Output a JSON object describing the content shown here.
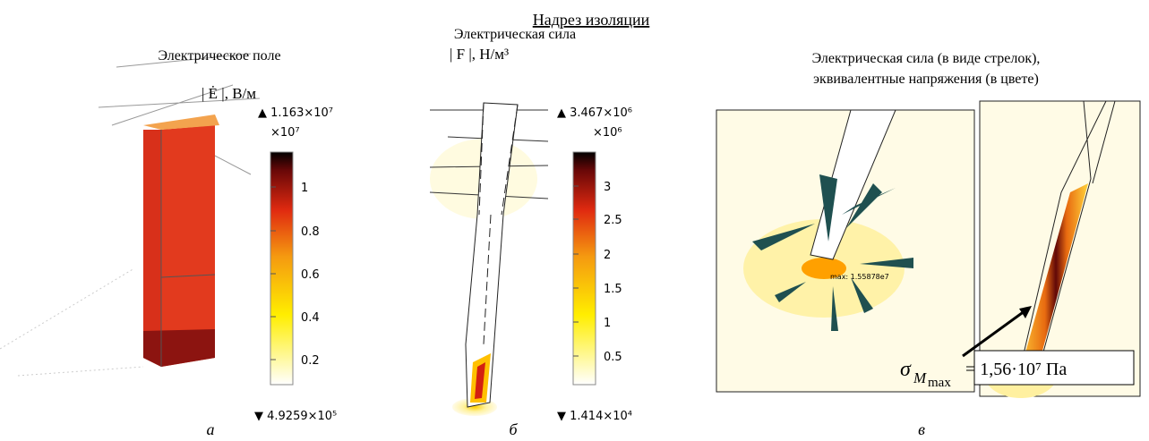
{
  "title": "Надрез изоляции",
  "panels": [
    {
      "heading": "Электрическое поле",
      "quantity": "| Ė |, В/м",
      "colorbar": {
        "max": "▲ 1.163×10⁷",
        "multiplier": "×10⁷",
        "ticks": [
          "1",
          "0.8",
          "0.6",
          "0.4",
          "0.2"
        ],
        "min": "▼ 4.9259×10⁵"
      },
      "caption": "а"
    },
    {
      "heading": "Электрическая сила",
      "quantity": "| F |, Н/м³",
      "colorbar": {
        "max": "▲ 3.467×10⁶",
        "multiplier": "×10⁶",
        "ticks": [
          "3",
          "2.5",
          "2",
          "1.5",
          "1",
          "0.5"
        ],
        "min": "▼ 1.414×10⁴"
      },
      "caption": "б"
    },
    {
      "heading": [
        "Электрическая сила (в виде стрелок),",
        "эквивалентные напряжения (в цвете)"
      ],
      "max_note": "max: 1.55878e7",
      "stress": {
        "symbol": "σ",
        "subscript": "M",
        "sub_subscript": "max",
        "value": "= 1,56·10⁷ Па"
      },
      "caption": "в"
    }
  ]
}
